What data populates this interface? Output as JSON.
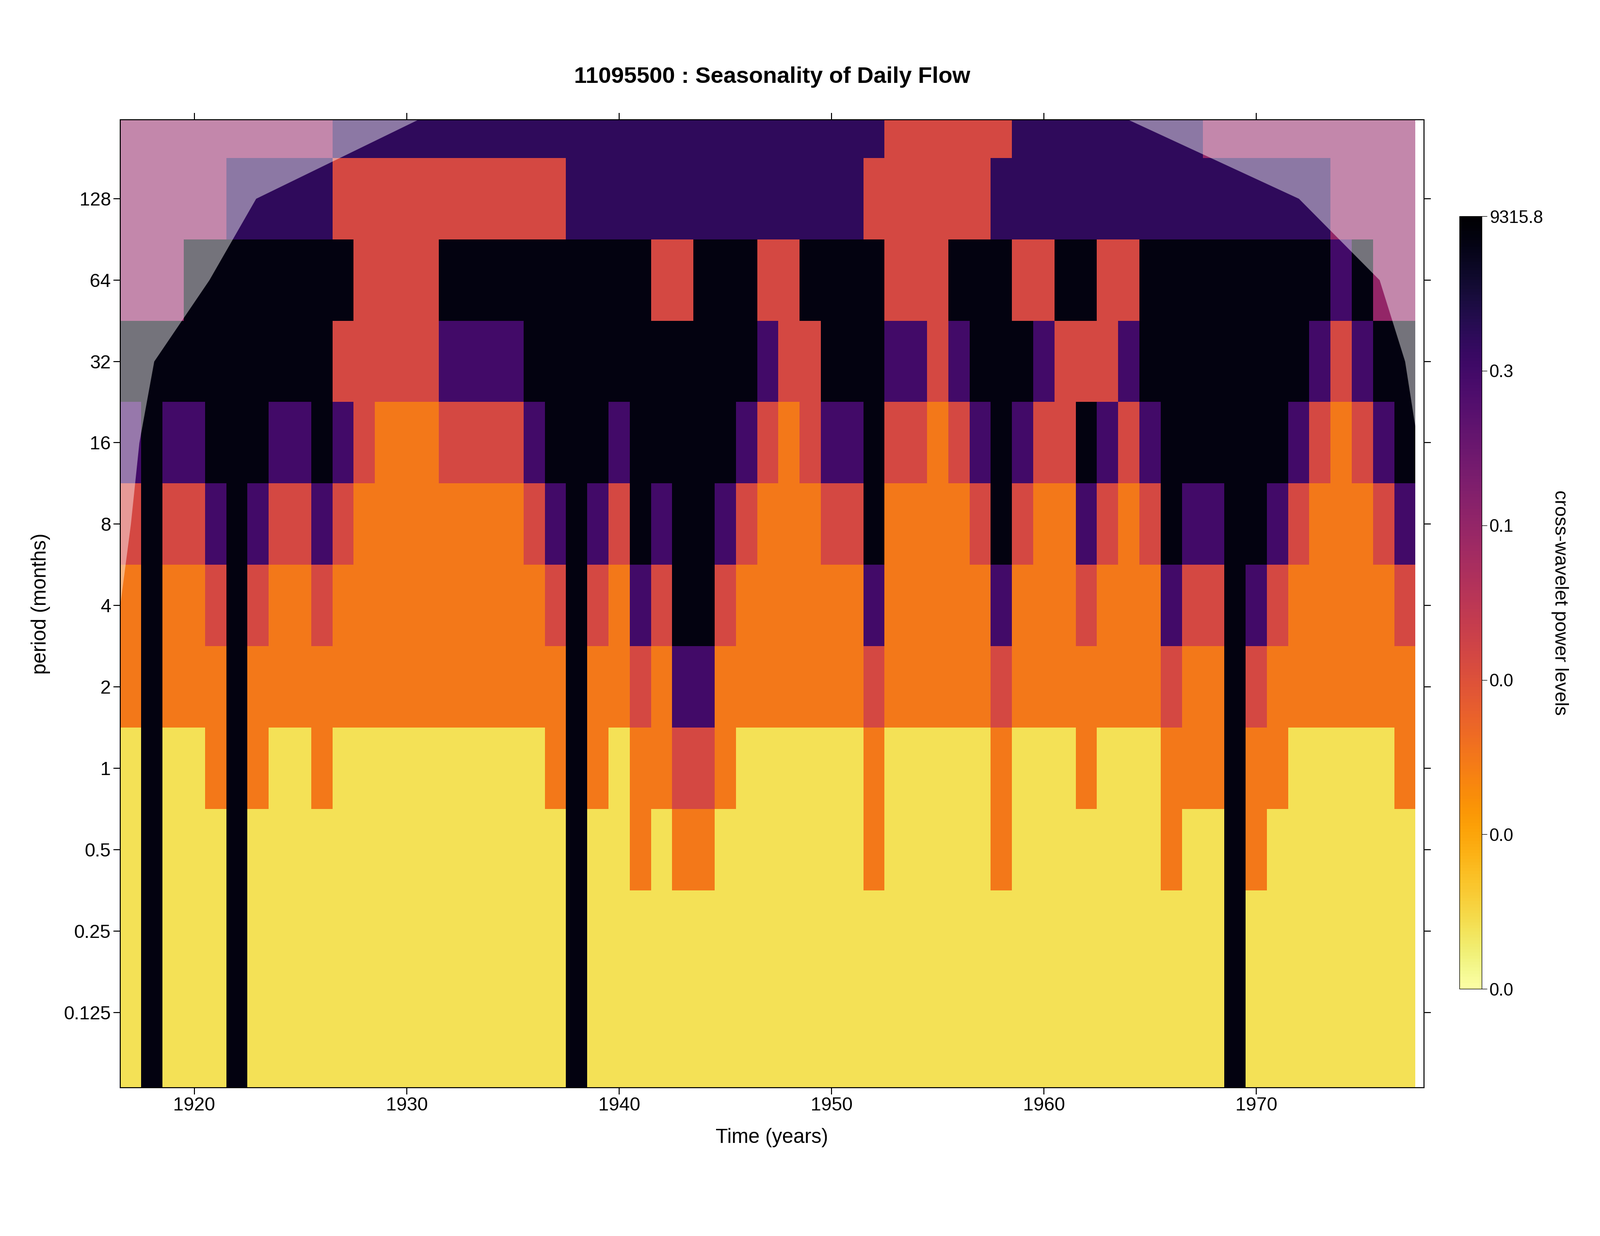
{
  "chart_data": {
    "type": "heatmap",
    "title": "11095500 : Seasonality of Daily Flow",
    "x_label": "Time (years)",
    "y_label": "period (months)",
    "log": "y",
    "xlim": [
      1916.5,
      1977.9
    ],
    "xticks": [
      1920,
      1930,
      1940,
      1950,
      1960,
      1970
    ],
    "ylim": [
      0.066,
      250
    ],
    "yticks": [
      0.125,
      0.25,
      0.5,
      1,
      2,
      4,
      8,
      16,
      32,
      64,
      128
    ],
    "x": [
      1917,
      1918,
      1919,
      1920,
      1921,
      1922,
      1923,
      1924,
      1925,
      1926,
      1927,
      1928,
      1929,
      1930,
      1931,
      1932,
      1933,
      1934,
      1935,
      1936,
      1937,
      1938,
      1939,
      1940,
      1941,
      1942,
      1943,
      1944,
      1945,
      1946,
      1947,
      1948,
      1949,
      1950,
      1951,
      1952,
      1953,
      1954,
      1955,
      1956,
      1957,
      1958,
      1959,
      1960,
      1961,
      1962,
      1963,
      1964,
      1965,
      1966,
      1967,
      1968,
      1969,
      1970,
      1971,
      1972,
      1973,
      1974,
      1975,
      1976,
      1977
    ],
    "y": [
      0.0625,
      0.125,
      0.25,
      0.5,
      1,
      2,
      4,
      8,
      16,
      32,
      64,
      128,
      256
    ],
    "cells": [
      [
        0.004,
        8000,
        0.004,
        0.004,
        0.004,
        8000,
        0.004,
        0.004,
        0.004,
        0.004,
        0.004,
        0.004,
        0.004,
        0.004,
        0.004,
        0.004,
        0.004,
        0.004,
        0.004,
        0.004,
        0.004,
        8000,
        0.004,
        0.004,
        0.004,
        0.004,
        0.004,
        0.004,
        0.004,
        0.004,
        0.004,
        0.004,
        0.004,
        0.004,
        0.004,
        0.004,
        0.004,
        0.004,
        0.004,
        0.004,
        0.004,
        0.004,
        0.004,
        0.004,
        0.004,
        0.004,
        0.004,
        0.004,
        0.004,
        0.004,
        0.004,
        0.004,
        8000,
        0.004,
        0.004,
        0.004,
        0.004,
        0.004,
        0.004,
        0.004,
        0.004
      ],
      [
        0.004,
        8000,
        0.004,
        0.004,
        0.004,
        8000,
        0.004,
        0.004,
        0.004,
        0.004,
        0.004,
        0.004,
        0.004,
        0.004,
        0.004,
        0.004,
        0.004,
        0.004,
        0.004,
        0.004,
        0.004,
        8000,
        0.004,
        0.004,
        0.004,
        0.004,
        0.004,
        0.004,
        0.004,
        0.004,
        0.004,
        0.004,
        0.004,
        0.004,
        0.004,
        0.004,
        0.004,
        0.004,
        0.004,
        0.004,
        0.004,
        0.004,
        0.004,
        0.004,
        0.004,
        0.004,
        0.004,
        0.004,
        0.004,
        0.004,
        0.004,
        0.004,
        8000,
        0.004,
        0.004,
        0.004,
        0.004,
        0.004,
        0.004,
        0.004,
        0.004
      ],
      [
        0.004,
        8000,
        0.004,
        0.004,
        0.004,
        8000,
        0.004,
        0.004,
        0.004,
        0.004,
        0.004,
        0.004,
        0.004,
        0.004,
        0.004,
        0.004,
        0.004,
        0.004,
        0.004,
        0.004,
        0.004,
        8000,
        0.004,
        0.004,
        0.004,
        0.004,
        0.004,
        0.004,
        0.004,
        0.004,
        0.004,
        0.004,
        0.004,
        0.004,
        0.004,
        0.004,
        0.004,
        0.004,
        0.004,
        0.004,
        0.004,
        0.004,
        0.004,
        0.004,
        0.004,
        0.004,
        0.004,
        0.004,
        0.004,
        0.004,
        0.004,
        0.004,
        8000,
        0.004,
        0.004,
        0.004,
        0.004,
        0.004,
        0.004,
        0.004,
        0.004
      ],
      [
        0.004,
        8000,
        0.004,
        0.004,
        0.004,
        8000,
        0.004,
        0.004,
        0.004,
        0.004,
        0.004,
        0.004,
        0.004,
        0.004,
        0.004,
        0.004,
        0.004,
        0.004,
        0.004,
        0.004,
        0.004,
        8000,
        0.004,
        0.004,
        0.02,
        0.004,
        0.02,
        0.02,
        0.004,
        0.004,
        0.004,
        0.004,
        0.004,
        0.004,
        0.004,
        0.02,
        0.004,
        0.004,
        0.004,
        0.004,
        0.004,
        0.02,
        0.004,
        0.004,
        0.004,
        0.004,
        0.004,
        0.004,
        0.004,
        0.02,
        0.004,
        0.004,
        8000,
        0.02,
        0.004,
        0.004,
        0.004,
        0.004,
        0.004,
        0.004,
        0.004
      ],
      [
        0.004,
        8000,
        0.004,
        0.004,
        0.02,
        8000,
        0.02,
        0.004,
        0.004,
        0.02,
        0.004,
        0.004,
        0.004,
        0.004,
        0.004,
        0.004,
        0.004,
        0.004,
        0.004,
        0.004,
        0.02,
        8000,
        0.02,
        0.004,
        0.02,
        0.02,
        0.04,
        0.04,
        0.02,
        0.004,
        0.004,
        0.004,
        0.004,
        0.004,
        0.004,
        0.02,
        0.004,
        0.004,
        0.004,
        0.004,
        0.004,
        0.02,
        0.004,
        0.004,
        0.004,
        0.02,
        0.004,
        0.004,
        0.004,
        0.02,
        0.02,
        0.02,
        8000,
        0.02,
        0.02,
        0.004,
        0.004,
        0.004,
        0.004,
        0.004,
        0.02
      ],
      [
        0.02,
        8000,
        0.02,
        0.02,
        0.02,
        8000,
        0.02,
        0.02,
        0.02,
        0.02,
        0.02,
        0.02,
        0.02,
        0.02,
        0.02,
        0.02,
        0.02,
        0.02,
        0.02,
        0.02,
        0.02,
        8000,
        0.02,
        0.02,
        0.04,
        0.02,
        2,
        2,
        0.02,
        0.02,
        0.02,
        0.02,
        0.02,
        0.02,
        0.02,
        0.04,
        0.02,
        0.02,
        0.02,
        0.02,
        0.02,
        0.04,
        0.02,
        0.02,
        0.02,
        0.02,
        0.02,
        0.02,
        0.02,
        0.04,
        0.02,
        0.02,
        8000,
        0.04,
        0.02,
        0.02,
        0.02,
        0.02,
        0.02,
        0.02,
        0.02
      ],
      [
        0.02,
        8000,
        0.02,
        0.02,
        0.04,
        8000,
        0.04,
        0.02,
        0.02,
        0.04,
        0.02,
        0.02,
        0.02,
        0.02,
        0.02,
        0.02,
        0.02,
        0.02,
        0.02,
        0.02,
        0.04,
        8000,
        0.04,
        0.02,
        2,
        0.04,
        8000,
        8000,
        0.04,
        0.02,
        0.02,
        0.02,
        0.02,
        0.02,
        0.02,
        2,
        0.02,
        0.02,
        0.02,
        0.02,
        0.02,
        2,
        0.02,
        0.02,
        0.02,
        0.04,
        0.02,
        0.02,
        0.02,
        2,
        0.04,
        0.04,
        8000,
        2,
        0.04,
        0.02,
        0.02,
        0.02,
        0.02,
        0.02,
        0.04
      ],
      [
        0.04,
        8000,
        0.04,
        0.04,
        2,
        8000,
        2,
        0.04,
        0.04,
        2,
        0.04,
        0.02,
        0.02,
        0.02,
        0.02,
        0.02,
        0.02,
        0.02,
        0.02,
        0.04,
        2,
        8000,
        2,
        0.04,
        8000,
        2,
        8000,
        8000,
        2,
        0.04,
        0.02,
        0.02,
        0.02,
        0.04,
        0.04,
        8000,
        0.02,
        0.02,
        0.02,
        0.02,
        0.04,
        8000,
        0.04,
        0.02,
        0.02,
        2,
        0.04,
        0.02,
        0.04,
        8000,
        2,
        2,
        8000,
        8000,
        2,
        0.04,
        0.02,
        0.02,
        0.02,
        0.04,
        2
      ],
      [
        2,
        8000,
        2,
        2,
        8000,
        8000,
        8000,
        2,
        2,
        8000,
        2,
        0.04,
        0.02,
        0.02,
        0.02,
        0.04,
        0.04,
        0.04,
        0.04,
        2,
        8000,
        8000,
        8000,
        2,
        8000,
        8000,
        8000,
        8000,
        8000,
        2,
        0.04,
        0.02,
        0.04,
        2,
        2,
        8000,
        0.04,
        0.04,
        0.02,
        0.04,
        2,
        8000,
        2,
        0.04,
        0.04,
        8000,
        2,
        0.04,
        2,
        8000,
        8000,
        8000,
        8000,
        8000,
        8000,
        2,
        0.04,
        0.02,
        0.04,
        2,
        8000
      ],
      [
        8000,
        8000,
        8000,
        8000,
        8000,
        8000,
        8000,
        8000,
        8000,
        8000,
        0.04,
        0.04,
        0.04,
        0.04,
        0.04,
        2,
        2,
        2,
        2,
        8000,
        8000,
        8000,
        8000,
        8000,
        8000,
        8000,
        8000,
        8000,
        8000,
        8000,
        2,
        0.04,
        0.04,
        8000,
        8000,
        8000,
        2,
        2,
        0.04,
        2,
        8000,
        8000,
        8000,
        2,
        0.04,
        0.04,
        0.04,
        2,
        8000,
        8000,
        8000,
        8000,
        8000,
        8000,
        8000,
        8000,
        2,
        0.04,
        2,
        8000,
        8000
      ],
      [
        0.1,
        0.1,
        0.1,
        8000,
        8000,
        8000,
        8000,
        8000,
        8000,
        8000,
        8000,
        0.04,
        0.04,
        0.04,
        0.04,
        8000,
        8000,
        8000,
        8000,
        8000,
        8000,
        8000,
        8000,
        8000,
        8000,
        0.04,
        0.04,
        8000,
        8000,
        8000,
        0.04,
        0.04,
        8000,
        8000,
        8000,
        8000,
        0.04,
        0.04,
        0.04,
        8000,
        8000,
        8000,
        0.04,
        0.04,
        8000,
        8000,
        0.04,
        0.04,
        8000,
        8000,
        8000,
        8000,
        8000,
        8000,
        8000,
        8000,
        8000,
        2,
        8000,
        0.1,
        0.1
      ],
      [
        0.1,
        0.1,
        0.1,
        0.1,
        0.1,
        2000,
        2000,
        2000,
        2000,
        2000,
        0.04,
        0.04,
        0.04,
        0.04,
        0.04,
        0.04,
        0.04,
        0.04,
        0.04,
        0.04,
        0.04,
        2000,
        2000,
        2000,
        2000,
        2000,
        2000,
        2000,
        2000,
        2000,
        2000,
        2000,
        2000,
        2000,
        2000,
        0.04,
        0.04,
        0.04,
        0.04,
        0.04,
        0.04,
        2000,
        2000,
        2000,
        2000,
        2000,
        2000,
        2000,
        2000,
        2000,
        2000,
        2000,
        2000,
        2000,
        2000,
        2000,
        2000,
        0.1,
        0.1,
        0.1,
        0.1
      ],
      [
        0.1,
        0.1,
        0.1,
        0.1,
        0.1,
        0.1,
        0.1,
        0.1,
        0.1,
        0.1,
        2000,
        2000,
        2000,
        2000,
        2000,
        2000,
        2000,
        2000,
        2000,
        2000,
        2000,
        2000,
        2000,
        2000,
        2000,
        2000,
        2000,
        2000,
        2000,
        2000,
        2000,
        2000,
        2000,
        2000,
        2000,
        2000,
        0.04,
        0.04,
        0.04,
        0.04,
        0.04,
        0.04,
        2000,
        2000,
        2000,
        2000,
        2000,
        2000,
        2000,
        2000,
        2000,
        0.1,
        0.1,
        0.1,
        0.1,
        0.1,
        0.1,
        0.1,
        0.1,
        0.1,
        0.1
      ]
    ],
    "colorbar": {
      "label": "cross-wavelet power levels",
      "range": [
        0,
        9315.8
      ],
      "ticks": [
        {
          "value": 0,
          "label": "0.0"
        },
        {
          "value": 0.01,
          "label": "0.0"
        },
        {
          "value": 0.03,
          "label": "0.0"
        },
        0.1,
        0.3,
        9315.8
      ]
    },
    "cone_of_influence": {
      "period": [
        4,
        8,
        16,
        32,
        64,
        128,
        250
      ],
      "left": [
        1916.5,
        1917.0,
        1917.4,
        1918.1,
        1920.7,
        1922.9,
        1930.5
      ],
      "right": [
        1977.9,
        1977.7,
        1977.6,
        1977.0,
        1975.8,
        1972.0,
        1964.0
      ]
    }
  }
}
